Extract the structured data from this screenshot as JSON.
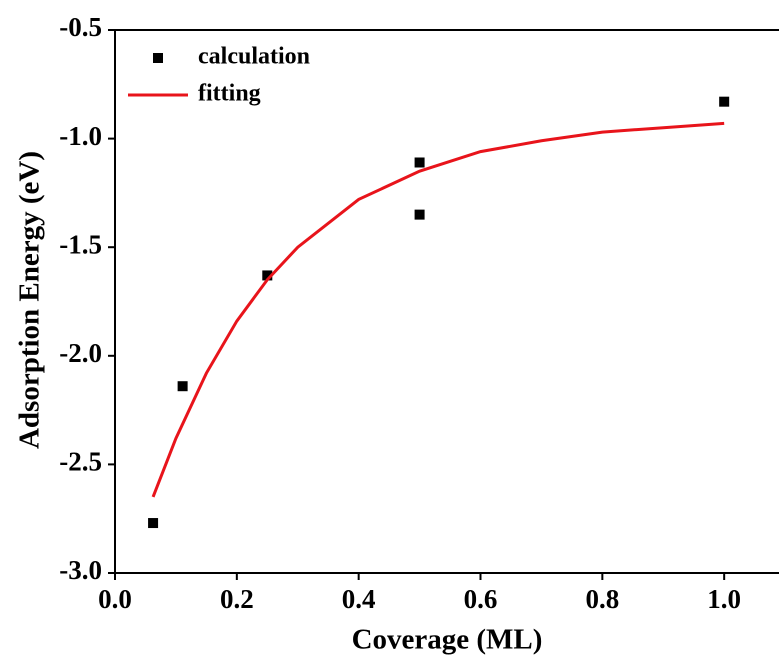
{
  "chart_data": {
    "type": "scatter",
    "xlabel": "Coverage (ML)",
    "ylabel": "Adsorption Energy (eV)",
    "xlim": [
      0,
      1.09
    ],
    "ylim": [
      -3.0,
      -0.5
    ],
    "xticks": [
      {
        "value": 0,
        "label": "0.0"
      },
      {
        "value": 0.2,
        "label": "0.2"
      },
      {
        "value": 0.4,
        "label": "0.4"
      },
      {
        "value": 0.6,
        "label": "0.6"
      },
      {
        "value": 0.8,
        "label": "0.8"
      },
      {
        "value": 1.0,
        "label": "1.0"
      }
    ],
    "yticks": [
      {
        "value": -3.0,
        "label": "-3.0"
      },
      {
        "value": -2.5,
        "label": "-2.5"
      },
      {
        "value": -2.0,
        "label": "-2.0"
      },
      {
        "value": -1.5,
        "label": "-1.5"
      },
      {
        "value": -1.0,
        "label": "-1.0"
      },
      {
        "value": -0.5,
        "label": "-0.5"
      }
    ],
    "legend": "upper left",
    "series": [
      {
        "name": "calculation",
        "type": "scatter",
        "color": "#000000",
        "x": [
          0.0625,
          0.111,
          0.25,
          0.5,
          0.5,
          1.0
        ],
        "values": [
          -2.77,
          -2.14,
          -1.63,
          -1.11,
          -1.35,
          -0.83
        ]
      },
      {
        "name": "fitting",
        "type": "line",
        "color": "#e8141b",
        "x": [
          0.0625,
          0.1,
          0.15,
          0.2,
          0.25,
          0.3,
          0.4,
          0.5,
          0.6,
          0.7,
          0.8,
          0.9,
          1.0
        ],
        "values": [
          -2.65,
          -2.38,
          -2.08,
          -1.84,
          -1.65,
          -1.5,
          -1.28,
          -1.15,
          -1.06,
          -1.01,
          -0.97,
          -0.95,
          -0.93
        ]
      }
    ]
  }
}
